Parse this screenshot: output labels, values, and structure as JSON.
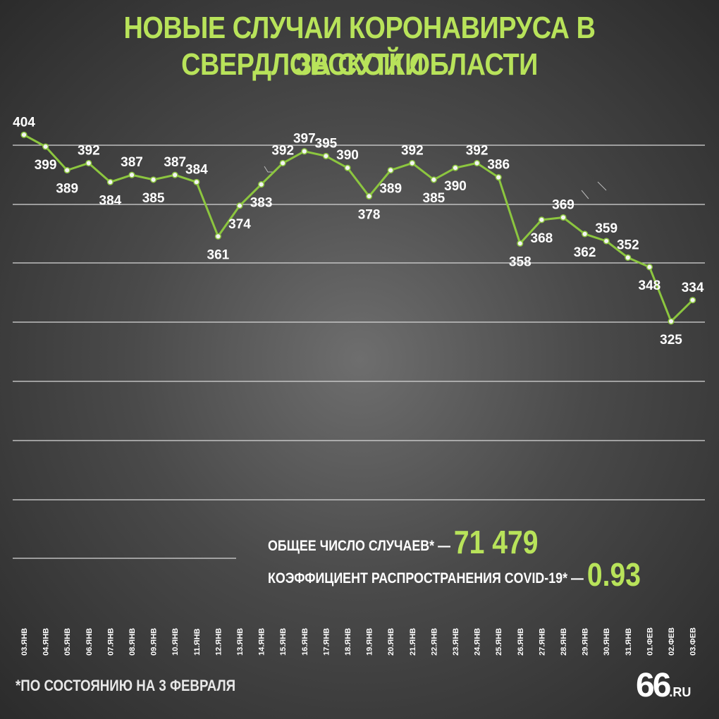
{
  "title": {
    "line1": "НОВЫЕ СЛУЧАИ КОРОНАВИРУСА В СВЕРДЛОВСКОЙ ОБЛАСТИ",
    "line2": "ЗА СУТКИ"
  },
  "chart_data": {
    "type": "line",
    "title": "НОВЫЕ СЛУЧАИ КОРОНАВИРУСА В СВЕРДЛОВСКОЙ ОБЛАСТИ ЗА СУТКИ",
    "categories": [
      "03.ЯНВ",
      "04.ЯНВ",
      "05.ЯНВ",
      "06.ЯНВ",
      "07.ЯНВ",
      "08.ЯНВ",
      "09.ЯНВ",
      "10.ЯНВ",
      "11.ЯНВ",
      "12.ЯНВ",
      "13.ЯНВ",
      "14.ЯНВ",
      "15.ЯНВ",
      "16.ЯНВ",
      "17.ЯНВ",
      "18.ЯНВ",
      "19.ЯНВ",
      "20.ЯНВ",
      "21.ЯНВ",
      "22.ЯНВ",
      "23.ЯНВ",
      "24.ЯНВ",
      "25.ЯНВ",
      "26.ЯНВ",
      "27.ЯНВ",
      "28.ЯНВ",
      "29.ЯНВ",
      "30.ЯНВ",
      "31.ЯНВ",
      "01.ФЕВ",
      "02.ФЕВ",
      "03.ФЕВ"
    ],
    "values": [
      404,
      399,
      389,
      392,
      384,
      387,
      385,
      387,
      384,
      361,
      374,
      383,
      392,
      397,
      395,
      390,
      378,
      389,
      392,
      385,
      390,
      392,
      386,
      358,
      368,
      369,
      362,
      359,
      352,
      348,
      325,
      334
    ],
    "grid": true,
    "line_color": "#8cc63f"
  },
  "stats": {
    "total_label": "ОБЩЕЕ ЧИСЛО СЛУЧАЕВ* —",
    "total_value": "71 479",
    "coef_label": "КОЭФФИЦИЕНТ РАСПРОСТРАНЕНИЯ COVID-19* —",
    "coef_value": "0.93"
  },
  "footnote": "*ПО СОСТОЯНИЮ НА 3 ФЕВРАЛЯ",
  "logo": {
    "number": "66",
    "domain": ".RU"
  },
  "colors": {
    "accent": "#b8e35a",
    "line": "#8cc63f",
    "text": "#ffffff"
  }
}
